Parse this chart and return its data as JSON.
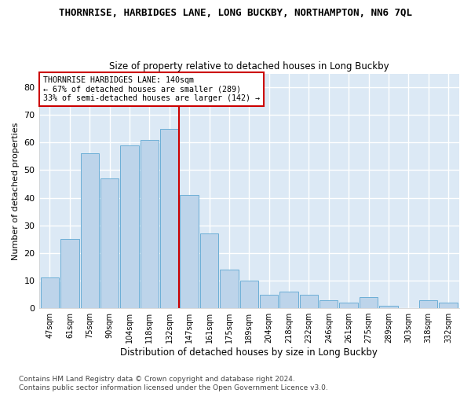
{
  "title": "THORNRISE, HARBIDGES LANE, LONG BUCKBY, NORTHAMPTON, NN6 7QL",
  "subtitle": "Size of property relative to detached houses in Long Buckby",
  "xlabel": "Distribution of detached houses by size in Long Buckby",
  "ylabel": "Number of detached properties",
  "categories": [
    "47sqm",
    "61sqm",
    "75sqm",
    "90sqm",
    "104sqm",
    "118sqm",
    "132sqm",
    "147sqm",
    "161sqm",
    "175sqm",
    "189sqm",
    "204sqm",
    "218sqm",
    "232sqm",
    "246sqm",
    "261sqm",
    "275sqm",
    "289sqm",
    "303sqm",
    "318sqm",
    "332sqm"
  ],
  "values": [
    11,
    25,
    56,
    47,
    59,
    61,
    65,
    41,
    27,
    14,
    10,
    5,
    6,
    5,
    3,
    2,
    4,
    1,
    0,
    3,
    2
  ],
  "bar_color": "#bdd4ea",
  "bar_edge_color": "#6baed6",
  "vline_x": 6.5,
  "vline_color": "#cc0000",
  "annotation_text": "THORNRISE HARBIDGES LANE: 140sqm\n← 67% of detached houses are smaller (289)\n33% of semi-detached houses are larger (142) →",
  "annotation_box_color": "#ffffff",
  "annotation_box_edge": "#cc0000",
  "footer": "Contains HM Land Registry data © Crown copyright and database right 2024.\nContains public sector information licensed under the Open Government Licence v3.0.",
  "ylim": [
    0,
    85
  ],
  "yticks": [
    0,
    10,
    20,
    30,
    40,
    50,
    60,
    70,
    80
  ],
  "plot_bg": "#dce9f5",
  "fig_bg": "#ffffff",
  "grid_color": "#ffffff",
  "title_fontsize": 9,
  "subtitle_fontsize": 8.5
}
